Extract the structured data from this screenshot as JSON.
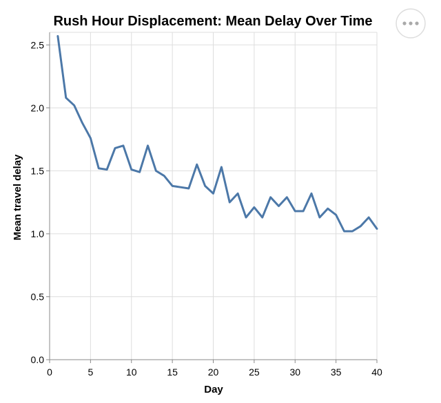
{
  "chart_data": {
    "type": "line",
    "title": "Rush Hour Displacement: Mean Delay Over Time",
    "xlabel": "Day",
    "ylabel": "Mean travel delay",
    "xlim": [
      0,
      40
    ],
    "ylim": [
      0,
      2.6
    ],
    "xticks": [
      0,
      5,
      10,
      15,
      20,
      25,
      30,
      35,
      40
    ],
    "yticks": [
      0.0,
      0.5,
      1.0,
      1.5,
      2.0,
      2.5
    ],
    "ytick_labels": [
      "0.0",
      "0.5",
      "1.0",
      "1.5",
      "2.0",
      "2.5"
    ],
    "grid": true,
    "color": "#4c78a8",
    "x": [
      1,
      2,
      3,
      4,
      5,
      6,
      7,
      8,
      9,
      10,
      11,
      12,
      13,
      14,
      15,
      16,
      17,
      18,
      19,
      20,
      21,
      22,
      23,
      24,
      25,
      26,
      27,
      28,
      29,
      30,
      31,
      32,
      33,
      34,
      35,
      36,
      37,
      38,
      39,
      40
    ],
    "y": [
      2.57,
      2.08,
      2.02,
      1.88,
      1.76,
      1.52,
      1.51,
      1.68,
      1.7,
      1.51,
      1.49,
      1.7,
      1.5,
      1.46,
      1.38,
      1.37,
      1.36,
      1.55,
      1.38,
      1.32,
      1.53,
      1.25,
      1.32,
      1.13,
      1.21,
      1.13,
      1.29,
      1.22,
      1.29,
      1.18,
      1.18,
      1.32,
      1.13,
      1.2,
      1.15,
      1.02,
      1.02,
      1.06,
      1.13,
      1.04
    ]
  },
  "actions_menu": {
    "icon": "more-horizontal-icon"
  }
}
